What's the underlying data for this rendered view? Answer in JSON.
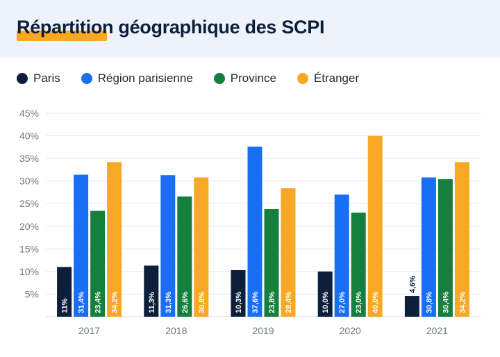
{
  "header": {
    "title": "Répartition géographique des SCPI"
  },
  "colors": {
    "header_bg": "#eef3fb",
    "accent": "#f9a825",
    "Paris": "#0b1f3a",
    "Région parisienne": "#1a6ef5",
    "Province": "#15803d",
    "Étranger": "#f9a825"
  },
  "legend": [
    {
      "label": "Paris",
      "color": "#0b1f3a"
    },
    {
      "label": "Région parisienne",
      "color": "#1a6ef5"
    },
    {
      "label": "Province",
      "color": "#15803d"
    },
    {
      "label": "Étranger",
      "color": "#f9a825"
    }
  ],
  "chart_data": {
    "type": "bar",
    "title": "Répartition géographique des SCPI",
    "xlabel": "",
    "ylabel": "",
    "ylim": [
      0,
      45
    ],
    "yticks": [
      "5%",
      "10%",
      "15%",
      "20%",
      "25%",
      "30%",
      "35%",
      "40%",
      "45%"
    ],
    "grid": true,
    "legend_position": "top-left",
    "categories": [
      "2017",
      "2018",
      "2019",
      "2020",
      "2021"
    ],
    "series": [
      {
        "name": "Paris",
        "color": "#0b1f3a",
        "values": [
          11,
          11.3,
          10.3,
          10.0,
          4.6
        ],
        "labels": [
          "11%",
          "11,3%",
          "10,3%",
          "10,0%",
          "4,6%"
        ]
      },
      {
        "name": "Région parisienne",
        "color": "#1a6ef5",
        "values": [
          31.4,
          31.3,
          37.6,
          27.0,
          30.8
        ],
        "labels": [
          "31,4%",
          "31,3%",
          "37,6%",
          "27,0%",
          "30,8%"
        ]
      },
      {
        "name": "Province",
        "color": "#15803d",
        "values": [
          23.4,
          26.6,
          23.8,
          23.0,
          30.4
        ],
        "labels": [
          "23,4%",
          "26,6%",
          "23,8%",
          "23,0%",
          "30,4%"
        ]
      },
      {
        "name": "Étranger",
        "color": "#f9a825",
        "values": [
          34.2,
          30.8,
          28.4,
          40.0,
          34.2
        ],
        "labels": [
          "34,2%",
          "30,8%",
          "28,4%",
          "40,0%",
          "34,2%"
        ]
      }
    ]
  }
}
